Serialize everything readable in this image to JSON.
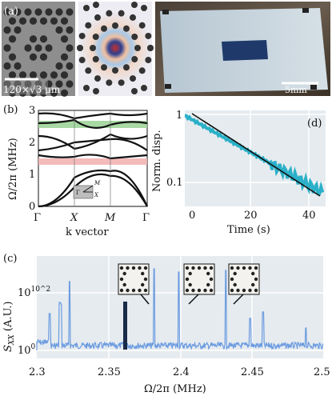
{
  "panel_a": {
    "label": "(a)",
    "scale1": "120×√3 μm",
    "scale2": "5mm"
  },
  "panel_b": {
    "label": "(b)",
    "ylabel": "Ω/2π (MHz)",
    "xlabel": "k vector",
    "xticks": [
      "Γ",
      "X",
      "M",
      "Γ"
    ],
    "yticks": [
      "0",
      "1",
      "2",
      "3"
    ],
    "inset": {
      "M": "M",
      "X": "X",
      "G": "Γ"
    }
  },
  "panel_d": {
    "label": "(d)",
    "ylabel": "Norm. disp.",
    "xlabel": "Time (s)",
    "xticks": [
      "0",
      "20",
      "40"
    ],
    "yticks": [
      "1",
      "0.1"
    ]
  },
  "panel_c": {
    "label": "(c)",
    "ylabel": "S_xx (A.U.)",
    "xlabel": "Ω/2π (MHz)",
    "xticks": [
      "2.3",
      "2.35",
      "2.4",
      "2.45",
      "2.5"
    ],
    "yticks": [
      "10^0",
      "10^2"
    ]
  },
  "colors": {
    "spectrum": "#6b9be0",
    "ringdown": "#2ab0c8",
    "grid": "#ffffff",
    "axes_bg": "#e6ebef",
    "band_green": "#9fd59a",
    "band_red": "#f2b3b3"
  },
  "chart_data": [
    {
      "type": "line",
      "name": "band structure",
      "xlabel": "k vector",
      "ylabel": "Ω/2π (MHz)",
      "ylim": [
        0,
        3
      ],
      "categories": [
        "Γ",
        "X",
        "M",
        "Γ"
      ],
      "bandgaps": [
        [
          1.25,
          1.45
        ],
        [
          2.3,
          2.5
        ]
      ]
    },
    {
      "type": "line",
      "name": "ringdown",
      "xlabel": "Time (s)",
      "ylabel": "Norm. disp.",
      "xlim": [
        0,
        46
      ],
      "ylim": [
        0.04,
        1.2
      ],
      "yscale": "log",
      "x": [
        0,
        5,
        10,
        15,
        20,
        25,
        30,
        35,
        40,
        45
      ],
      "y": [
        1.0,
        0.74,
        0.55,
        0.41,
        0.3,
        0.22,
        0.16,
        0.12,
        0.09,
        0.065
      ]
    },
    {
      "type": "line",
      "name": "spectrum",
      "xlabel": "Ω/2π (MHz)",
      "ylabel": "S_xx (A.U.)",
      "xlim": [
        2.3,
        2.5
      ],
      "yscale": "log",
      "peaks_mhz": [
        2.309,
        2.316,
        2.317,
        2.323,
        2.36,
        2.382,
        2.399,
        2.432,
        2.449,
        2.458,
        2.488
      ]
    }
  ]
}
